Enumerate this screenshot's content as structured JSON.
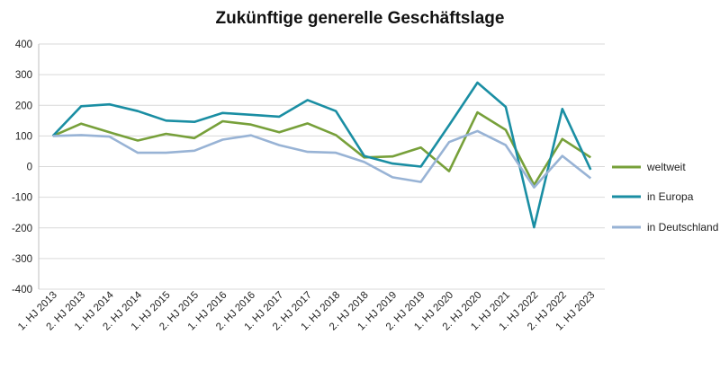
{
  "chart_data": {
    "type": "line",
    "title": "Zukünftige generelle Geschäftslage",
    "xlabel": "",
    "ylabel": "",
    "ylim": [
      -400,
      400
    ],
    "yticks": [
      "400",
      "300",
      "200",
      "100",
      "0",
      "-100",
      "-200",
      "-300",
      "-400"
    ],
    "grid": true,
    "legend_position": "right",
    "categories": [
      "1. HJ 2013",
      "2. HJ 2013",
      "1. HJ 2014",
      "2. HJ 2014",
      "1. HJ 2015",
      "2. HJ 2015",
      "1. HJ 2016",
      "2. HJ 2016",
      "1. HJ 2017",
      "2. HJ 2017",
      "1. HJ 2018",
      "2. HJ 2018",
      "1. HJ 2019",
      "2. HJ 2019",
      "1. HJ 2020",
      "2. HJ 2020",
      "1. HJ 2021",
      "1. HJ 2022",
      "2. HJ 2022",
      "1. HJ 2023"
    ],
    "series": [
      {
        "name": "weltweit",
        "color": "#77a03a",
        "values": [
          100,
          140,
          112,
          85,
          107,
          93,
          148,
          137,
          112,
          141,
          103,
          30,
          33,
          62,
          -15,
          177,
          120,
          -60,
          90,
          30
        ]
      },
      {
        "name": "in Europa",
        "color": "#1a8ea3",
        "values": [
          100,
          197,
          203,
          181,
          150,
          146,
          175,
          169,
          163,
          217,
          181,
          35,
          10,
          0,
          135,
          274,
          195,
          -198,
          188,
          -10
        ]
      },
      {
        "name": "in Deutschland",
        "color": "#98b3d5",
        "values": [
          100,
          103,
          98,
          45,
          45,
          52,
          88,
          102,
          70,
          48,
          45,
          15,
          -35,
          -50,
          80,
          116,
          70,
          -68,
          35,
          -38
        ]
      }
    ]
  }
}
